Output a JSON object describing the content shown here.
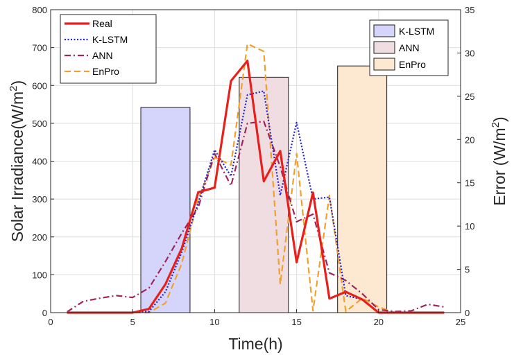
{
  "chart_data": {
    "type": "line",
    "xlabel": "Time(h)",
    "ylabel": "Solar Irradiance(W/m",
    "ylabel_sup": "2",
    "ylabel_close": ")",
    "y2label": "Error (W/m",
    "y2label_sup": "2",
    "y2label_close": ")",
    "xlim": [
      0,
      25
    ],
    "ylim": [
      0,
      800
    ],
    "y2lim": [
      0,
      35
    ],
    "xticks": [
      "0",
      "5",
      "10",
      "15",
      "20",
      "25"
    ],
    "yticks": [
      "0",
      "100",
      "200",
      "300",
      "400",
      "500",
      "600",
      "700",
      "800"
    ],
    "y2ticks": [
      "0",
      "5",
      "10",
      "15",
      "20",
      "25",
      "30",
      "35"
    ],
    "grid": true,
    "series": [
      {
        "name": "Real",
        "color": "#e8201c",
        "style": "solid",
        "x": [
          1,
          2,
          3,
          4,
          5,
          6,
          7,
          8,
          9,
          10,
          11,
          12,
          13,
          14,
          15,
          16,
          17,
          18,
          19,
          20,
          21,
          22,
          23,
          24
        ],
        "values": [
          0,
          0,
          0,
          0,
          0,
          10,
          75,
          170,
          318,
          330,
          612,
          665,
          347,
          427,
          133,
          317,
          37,
          55,
          35,
          0,
          0,
          0,
          0,
          0
        ]
      },
      {
        "name": "K-LSTM",
        "color": "#1f23c9",
        "style": "dotted",
        "x": [
          1,
          2,
          3,
          4,
          5,
          6,
          7,
          8,
          9,
          10,
          11,
          12,
          13,
          14,
          15,
          16,
          17,
          18,
          19,
          20,
          21,
          22,
          23,
          24
        ],
        "values": [
          0,
          0,
          0,
          0,
          0,
          3,
          55,
          160,
          290,
          430,
          360,
          575,
          585,
          310,
          502,
          300,
          305,
          45,
          35,
          0,
          0,
          0,
          0,
          0
        ]
      },
      {
        "name": "ANN",
        "color": "#a0245a",
        "style": "dashdot",
        "x": [
          1,
          2,
          3,
          4,
          5,
          6,
          7,
          8,
          9,
          10,
          11,
          12,
          13,
          14,
          15,
          16,
          17,
          18,
          19,
          20,
          21,
          22,
          23,
          24
        ],
        "values": [
          2,
          30,
          38,
          45,
          40,
          65,
          135,
          210,
          278,
          420,
          335,
          500,
          505,
          385,
          240,
          260,
          105,
          85,
          50,
          8,
          3,
          5,
          22,
          15
        ]
      },
      {
        "name": "EnPro",
        "color": "#f2a02a",
        "style": "dashed",
        "x": [
          1,
          2,
          3,
          4,
          5,
          6,
          7,
          8,
          9,
          10,
          11,
          12,
          13,
          14,
          15,
          16,
          17,
          18,
          19,
          20,
          21,
          22,
          23,
          24
        ],
        "values": [
          0,
          0,
          0,
          0,
          0,
          0,
          25,
          130,
          300,
          410,
          390,
          710,
          690,
          75,
          420,
          5,
          310,
          3,
          38,
          15,
          0,
          0,
          0,
          0
        ]
      }
    ],
    "error_bars": [
      {
        "name": "K-LSTM",
        "center_x": 7,
        "width": 3,
        "value": 23.7,
        "fill": "#d5d5fb"
      },
      {
        "name": "ANN",
        "center_x": 13,
        "width": 3,
        "value": 27.2,
        "fill": "#f0dde2"
      },
      {
        "name": "EnPro",
        "center_x": 19,
        "width": 3,
        "value": 28.5,
        "fill": "#fde9d2"
      }
    ]
  }
}
